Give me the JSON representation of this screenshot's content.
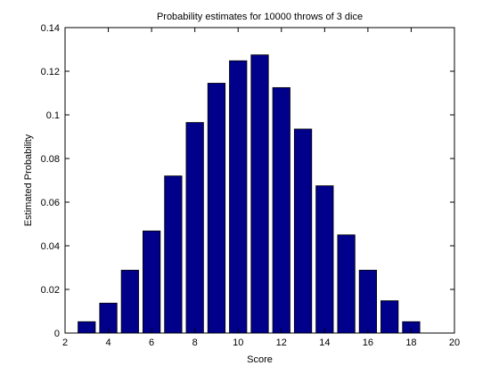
{
  "chart_data": {
    "type": "bar",
    "title": "Probability estimates for 10000 throws of 3 dice",
    "xlabel": "Score",
    "ylabel": "Estimated Probability",
    "xlim": [
      2,
      20
    ],
    "ylim": [
      0,
      0.14
    ],
    "x": [
      3,
      4,
      5,
      6,
      7,
      8,
      9,
      10,
      11,
      12,
      13,
      14,
      15,
      16,
      17,
      18
    ],
    "values": [
      0.0052,
      0.0137,
      0.0288,
      0.0468,
      0.072,
      0.0965,
      0.1145,
      0.1248,
      0.1275,
      0.1125,
      0.0935,
      0.0675,
      0.045,
      0.0288,
      0.0148,
      0.0052
    ],
    "xticks": [
      2,
      4,
      6,
      8,
      10,
      12,
      14,
      16,
      18,
      20
    ],
    "yticks": [
      0,
      0.02,
      0.04,
      0.06,
      0.08,
      0.1,
      0.12,
      0.14
    ],
    "ytick_labels": [
      "0",
      "0.02",
      "0.04",
      "0.06",
      "0.08",
      "0.1",
      "0.12",
      "0.14"
    ],
    "xtick_labels": [
      "2",
      "4",
      "6",
      "8",
      "10",
      "12",
      "14",
      "16",
      "18",
      "20"
    ],
    "bar_color": "#00008B",
    "grid": false
  }
}
